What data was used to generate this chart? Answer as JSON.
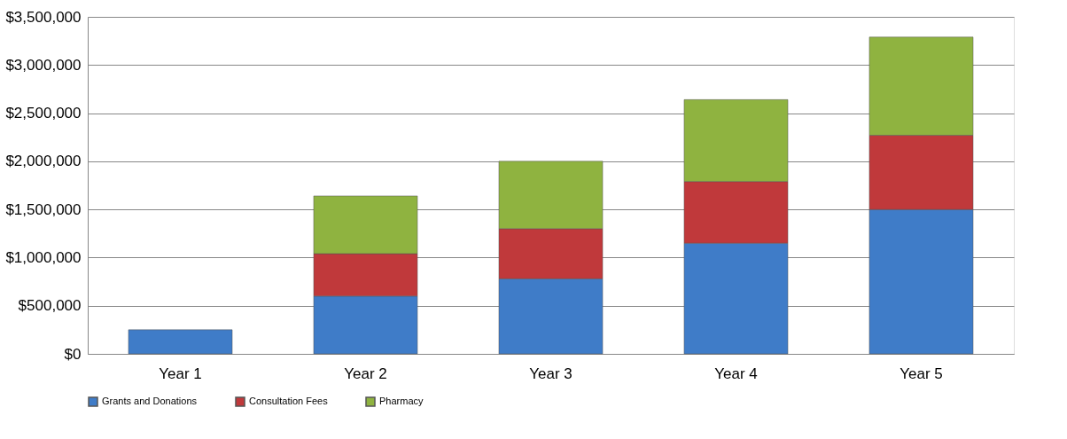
{
  "chart_data": {
    "type": "bar",
    "stacked": true,
    "categories": [
      "Year 1",
      "Year 2",
      "Year 3",
      "Year 4",
      "Year 5"
    ],
    "series": [
      {
        "name": "Grants and Donations",
        "color": "#3f7cc8",
        "values": [
          250000,
          600000,
          780000,
          1150000,
          1500000
        ]
      },
      {
        "name": "Consultation Fees",
        "color": "#c0393b",
        "values": [
          null,
          440000,
          520000,
          640000,
          770000
        ]
      },
      {
        "name": "Pharmacy",
        "color": "#8fb340",
        "values": [
          null,
          600000,
          700000,
          850000,
          1020000
        ]
      }
    ],
    "ylim": [
      0,
      3500000
    ],
    "yticks": [
      {
        "value": 0,
        "label": "$0"
      },
      {
        "value": 500000,
        "label": "$500,000"
      },
      {
        "value": 1000000,
        "label": "$1,000,000"
      },
      {
        "value": 1500000,
        "label": "$1,500,000"
      },
      {
        "value": 2000000,
        "label": "$2,000,000"
      },
      {
        "value": 2500000,
        "label": "$2,500,000"
      },
      {
        "value": 3000000,
        "label": "$3,000,000"
      },
      {
        "value": 3500000,
        "label": "$3,500,000"
      }
    ],
    "grid": "y",
    "legend": "bottom"
  }
}
